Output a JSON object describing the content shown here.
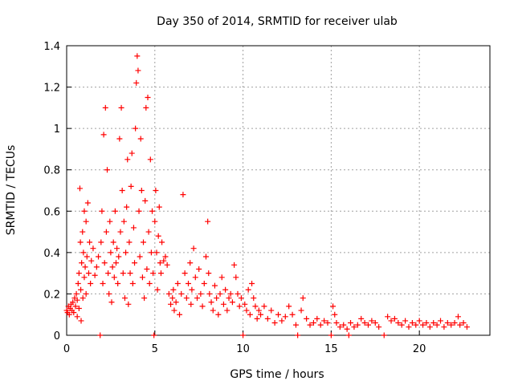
{
  "chart_data": {
    "type": "scatter",
    "title": "Day 350 of 2014, SRMTID for receiver ulab",
    "xlabel": "GPS time / hours",
    "ylabel": "SRMTID / TECUs",
    "xlim": [
      0,
      24
    ],
    "ylim": [
      0,
      1.4
    ],
    "x_ticks": [
      0,
      5,
      10,
      15,
      20
    ],
    "x_tick_labels": [
      "0",
      "5",
      "10",
      "15",
      "20"
    ],
    "y_ticks": [
      0,
      0.2,
      0.4,
      0.6,
      0.8,
      1.0,
      1.2,
      1.4
    ],
    "y_tick_labels": [
      "0",
      "0.2",
      "0.4",
      "0.6",
      "0.8",
      "1",
      "1.2",
      "1.4"
    ],
    "grid": true,
    "marker": "+",
    "series": [
      {
        "name": "SRMTID",
        "color": "#ff0000",
        "points": [
          [
            0.0,
            0.12
          ],
          [
            0.05,
            0.11
          ],
          [
            0.1,
            0.14
          ],
          [
            0.15,
            0.1
          ],
          [
            0.2,
            0.13
          ],
          [
            0.25,
            0.15
          ],
          [
            0.3,
            0.12
          ],
          [
            0.35,
            0.16
          ],
          [
            0.4,
            0.11
          ],
          [
            0.45,
            0.18
          ],
          [
            0.5,
            0.14
          ],
          [
            0.55,
            0.2
          ],
          [
            0.6,
            0.09
          ],
          [
            0.6,
            0.17
          ],
          [
            0.65,
            0.25
          ],
          [
            0.7,
            0.13
          ],
          [
            0.7,
            0.3
          ],
          [
            0.75,
            0.71
          ],
          [
            0.78,
            0.45
          ],
          [
            0.8,
            0.22
          ],
          [
            0.82,
            0.07
          ],
          [
            0.85,
            0.35
          ],
          [
            0.9,
            0.5
          ],
          [
            0.92,
            0.18
          ],
          [
            0.95,
            0.4
          ],
          [
            1.0,
            0.6
          ],
          [
            1.0,
            0.28
          ],
          [
            1.05,
            0.33
          ],
          [
            1.1,
            0.55
          ],
          [
            1.1,
            0.2
          ],
          [
            1.15,
            0.38
          ],
          [
            1.2,
            0.64
          ],
          [
            1.25,
            0.3
          ],
          [
            1.3,
            0.45
          ],
          [
            1.35,
            0.25
          ],
          [
            1.4,
            0.36
          ],
          [
            1.5,
            0.42
          ],
          [
            1.6,
            0.29
          ],
          [
            1.7,
            0.33
          ],
          [
            1.8,
            0.38
          ],
          [
            1.9,
            0.0
          ],
          [
            1.95,
            0.45
          ],
          [
            2.0,
            0.6
          ],
          [
            2.05,
            0.25
          ],
          [
            2.1,
            0.97
          ],
          [
            2.15,
            0.35
          ],
          [
            2.2,
            1.1
          ],
          [
            2.25,
            0.5
          ],
          [
            2.3,
            0.8
          ],
          [
            2.35,
            0.3
          ],
          [
            2.4,
            0.2
          ],
          [
            2.45,
            0.55
          ],
          [
            2.5,
            0.4
          ],
          [
            2.55,
            0.16
          ],
          [
            2.6,
            0.33
          ],
          [
            2.65,
            0.45
          ],
          [
            2.7,
            0.28
          ],
          [
            2.75,
            0.6
          ],
          [
            2.8,
            0.35
          ],
          [
            2.85,
            0.42
          ],
          [
            2.9,
            0.25
          ],
          [
            2.95,
            0.38
          ],
          [
            3.0,
            0.95
          ],
          [
            3.05,
            0.5
          ],
          [
            3.1,
            1.1
          ],
          [
            3.15,
            0.7
          ],
          [
            3.2,
            0.3
          ],
          [
            3.25,
            0.55
          ],
          [
            3.3,
            0.18
          ],
          [
            3.35,
            0.4
          ],
          [
            3.4,
            0.62
          ],
          [
            3.45,
            0.85
          ],
          [
            3.5,
            0.15
          ],
          [
            3.55,
            0.45
          ],
          [
            3.6,
            0.3
          ],
          [
            3.65,
            0.72
          ],
          [
            3.7,
            0.88
          ],
          [
            3.75,
            0.25
          ],
          [
            3.8,
            0.52
          ],
          [
            3.85,
            0.35
          ],
          [
            3.9,
            1.0
          ],
          [
            3.95,
            1.22
          ],
          [
            4.0,
            1.35
          ],
          [
            4.05,
            1.28
          ],
          [
            4.1,
            0.6
          ],
          [
            4.15,
            0.38
          ],
          [
            4.2,
            0.95
          ],
          [
            4.25,
            0.7
          ],
          [
            4.3,
            0.28
          ],
          [
            4.35,
            0.45
          ],
          [
            4.4,
            0.18
          ],
          [
            4.45,
            0.65
          ],
          [
            4.5,
            1.1
          ],
          [
            4.55,
            0.32
          ],
          [
            4.6,
            1.15
          ],
          [
            4.65,
            0.5
          ],
          [
            4.7,
            0.25
          ],
          [
            4.75,
            0.85
          ],
          [
            4.8,
            0.4
          ],
          [
            4.85,
            0.6
          ],
          [
            4.9,
            0.3
          ],
          [
            4.95,
            0.0
          ],
          [
            5.0,
            0.55
          ],
          [
            5.05,
            0.7
          ],
          [
            5.1,
            0.4
          ],
          [
            5.15,
            0.22
          ],
          [
            5.2,
            0.48
          ],
          [
            5.25,
            0.62
          ],
          [
            5.3,
            0.35
          ],
          [
            5.35,
            0.3
          ],
          [
            5.4,
            0.45
          ],
          [
            5.5,
            0.36
          ],
          [
            5.6,
            0.38
          ],
          [
            5.7,
            0.34
          ],
          [
            5.8,
            0.2
          ],
          [
            5.9,
            0.15
          ],
          [
            6.0,
            0.18
          ],
          [
            6.05,
            0.22
          ],
          [
            6.1,
            0.12
          ],
          [
            6.2,
            0.16
          ],
          [
            6.3,
            0.25
          ],
          [
            6.4,
            0.1
          ],
          [
            6.5,
            0.2
          ],
          [
            6.6,
            0.68
          ],
          [
            6.7,
            0.3
          ],
          [
            6.8,
            0.18
          ],
          [
            6.9,
            0.25
          ],
          [
            7.0,
            0.35
          ],
          [
            7.05,
            0.15
          ],
          [
            7.1,
            0.22
          ],
          [
            7.2,
            0.42
          ],
          [
            7.3,
            0.28
          ],
          [
            7.4,
            0.18
          ],
          [
            7.5,
            0.32
          ],
          [
            7.6,
            0.2
          ],
          [
            7.7,
            0.14
          ],
          [
            7.8,
            0.25
          ],
          [
            7.9,
            0.38
          ],
          [
            8.0,
            0.55
          ],
          [
            8.05,
            0.3
          ],
          [
            8.1,
            0.2
          ],
          [
            8.2,
            0.16
          ],
          [
            8.3,
            0.12
          ],
          [
            8.4,
            0.24
          ],
          [
            8.5,
            0.18
          ],
          [
            8.6,
            0.1
          ],
          [
            8.7,
            0.2
          ],
          [
            8.8,
            0.28
          ],
          [
            8.9,
            0.15
          ],
          [
            9.0,
            0.22
          ],
          [
            9.1,
            0.12
          ],
          [
            9.2,
            0.18
          ],
          [
            9.3,
            0.2
          ],
          [
            9.4,
            0.16
          ],
          [
            9.5,
            0.34
          ],
          [
            9.6,
            0.28
          ],
          [
            9.7,
            0.2
          ],
          [
            9.8,
            0.14
          ],
          [
            9.9,
            0.18
          ],
          [
            10.0,
            0.0
          ],
          [
            10.1,
            0.15
          ],
          [
            10.2,
            0.12
          ],
          [
            10.3,
            0.22
          ],
          [
            10.4,
            0.1
          ],
          [
            10.5,
            0.25
          ],
          [
            10.6,
            0.18
          ],
          [
            10.7,
            0.14
          ],
          [
            10.8,
            0.08
          ],
          [
            10.9,
            0.12
          ],
          [
            11.0,
            0.1
          ],
          [
            11.2,
            0.14
          ],
          [
            11.4,
            0.08
          ],
          [
            11.6,
            0.12
          ],
          [
            11.8,
            0.06
          ],
          [
            12.0,
            0.1
          ],
          [
            12.2,
            0.07
          ],
          [
            12.4,
            0.09
          ],
          [
            12.6,
            0.14
          ],
          [
            12.8,
            0.1
          ],
          [
            13.0,
            0.05
          ],
          [
            13.1,
            0.0
          ],
          [
            13.3,
            0.12
          ],
          [
            13.4,
            0.18
          ],
          [
            13.6,
            0.08
          ],
          [
            13.8,
            0.05
          ],
          [
            14.0,
            0.06
          ],
          [
            14.2,
            0.08
          ],
          [
            14.4,
            0.05
          ],
          [
            14.6,
            0.07
          ],
          [
            14.8,
            0.06
          ],
          [
            15.0,
            0.0
          ],
          [
            15.1,
            0.14
          ],
          [
            15.2,
            0.1
          ],
          [
            15.3,
            0.06
          ],
          [
            15.5,
            0.04
          ],
          [
            15.7,
            0.05
          ],
          [
            15.9,
            0.03
          ],
          [
            16.0,
            0.0
          ],
          [
            16.1,
            0.06
          ],
          [
            16.3,
            0.04
          ],
          [
            16.5,
            0.05
          ],
          [
            16.7,
            0.08
          ],
          [
            16.9,
            0.06
          ],
          [
            17.1,
            0.05
          ],
          [
            17.3,
            0.07
          ],
          [
            17.5,
            0.06
          ],
          [
            17.7,
            0.04
          ],
          [
            18.0,
            0.0
          ],
          [
            18.2,
            0.09
          ],
          [
            18.4,
            0.07
          ],
          [
            18.6,
            0.08
          ],
          [
            18.8,
            0.06
          ],
          [
            19.0,
            0.05
          ],
          [
            19.2,
            0.07
          ],
          [
            19.4,
            0.04
          ],
          [
            19.6,
            0.06
          ],
          [
            19.8,
            0.05
          ],
          [
            20.0,
            0.07
          ],
          [
            20.2,
            0.05
          ],
          [
            20.4,
            0.06
          ],
          [
            20.6,
            0.04
          ],
          [
            20.8,
            0.06
          ],
          [
            21.0,
            0.05
          ],
          [
            21.2,
            0.07
          ],
          [
            21.4,
            0.04
          ],
          [
            21.6,
            0.06
          ],
          [
            21.8,
            0.05
          ],
          [
            22.0,
            0.06
          ],
          [
            22.2,
            0.09
          ],
          [
            22.3,
            0.05
          ],
          [
            22.5,
            0.06
          ],
          [
            22.7,
            0.04
          ]
        ]
      }
    ]
  }
}
